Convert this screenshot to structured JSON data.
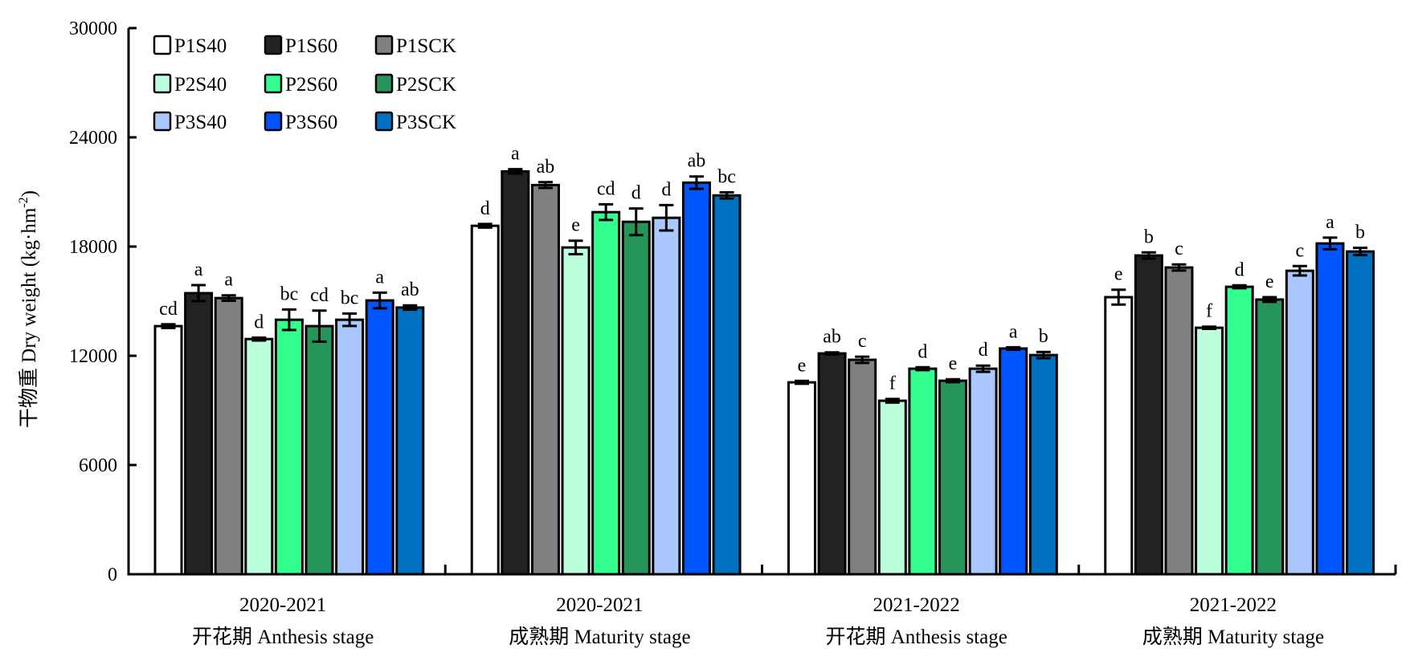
{
  "chart_data": {
    "type": "bar",
    "title": "",
    "xlabel": "",
    "ylabel": "干物重 Dry weight (kg·hm⁻²)",
    "ylabel_parts": {
      "main": "干物重 Dry weight (kg·hm",
      "sup": "-2",
      "close": ")"
    },
    "ylim": [
      0,
      30000
    ],
    "yticks": [
      0,
      6000,
      12000,
      18000,
      24000,
      30000
    ],
    "grid": false,
    "legend_position": "top-left",
    "categories": [
      {
        "line1": "2020-2021",
        "line2": "开花期 Anthesis stage"
      },
      {
        "line1": "2020-2021",
        "line2": "成熟期 Maturity stage"
      },
      {
        "line1": "2021-2022",
        "line2": "开花期 Anthesis stage"
      },
      {
        "line1": "2021-2022",
        "line2": "成熟期 Maturity stage"
      }
    ],
    "series": [
      {
        "name": "P1S40",
        "color": "#FFFFFF",
        "values": [
          13630,
          19140,
          10540,
          15220
        ],
        "errors": [
          100,
          100,
          80,
          410
        ],
        "letters": [
          "cd",
          "d",
          "e",
          "e"
        ]
      },
      {
        "name": "P1S60",
        "color": "#222222",
        "values": [
          15440,
          22130,
          12130,
          17510
        ],
        "errors": [
          440,
          120,
          60,
          170
        ],
        "letters": [
          "a",
          "a",
          "ab",
          "b"
        ]
      },
      {
        "name": "P1SCK",
        "color": "#808080",
        "values": [
          15170,
          21380,
          11780,
          16850
        ],
        "errors": [
          150,
          160,
          170,
          170
        ],
        "letters": [
          "a",
          "ab",
          "c",
          "c"
        ]
      },
      {
        "name": "P2S40",
        "color": "#BBFFDD",
        "values": [
          12920,
          17950,
          9530,
          13540
        ],
        "errors": [
          80,
          370,
          100,
          60
        ],
        "letters": [
          "d",
          "e",
          "f",
          "f"
        ]
      },
      {
        "name": "P2S60",
        "color": "#33FF8F",
        "values": [
          13980,
          19890,
          11290,
          15790
        ],
        "errors": [
          560,
          430,
          80,
          80
        ],
        "letters": [
          "bc",
          "cd",
          "d",
          "d"
        ]
      },
      {
        "name": "P2SCK",
        "color": "#25955A",
        "values": [
          13630,
          19360,
          10630,
          15090
        ],
        "errors": [
          850,
          730,
          80,
          130
        ],
        "letters": [
          "cd",
          "d",
          "e",
          "e"
        ]
      },
      {
        "name": "P3S40",
        "color": "#AAC8FF",
        "values": [
          13980,
          19580,
          11290,
          16670
        ],
        "errors": [
          340,
          700,
          170,
          260
        ],
        "letters": [
          "bc",
          "d",
          "d",
          "c"
        ]
      },
      {
        "name": "P3S60",
        "color": "#0055FF",
        "values": [
          15040,
          21510,
          12400,
          18170
        ],
        "errors": [
          430,
          340,
          70,
          320
        ],
        "letters": [
          "a",
          "ab",
          "a",
          "a"
        ]
      },
      {
        "name": "P3SCK",
        "color": "#0070C0",
        "values": [
          14650,
          20810,
          12040,
          17730
        ],
        "errors": [
          120,
          170,
          170,
          200
        ],
        "letters": [
          "ab",
          "bc",
          "b",
          "b"
        ]
      }
    ]
  }
}
